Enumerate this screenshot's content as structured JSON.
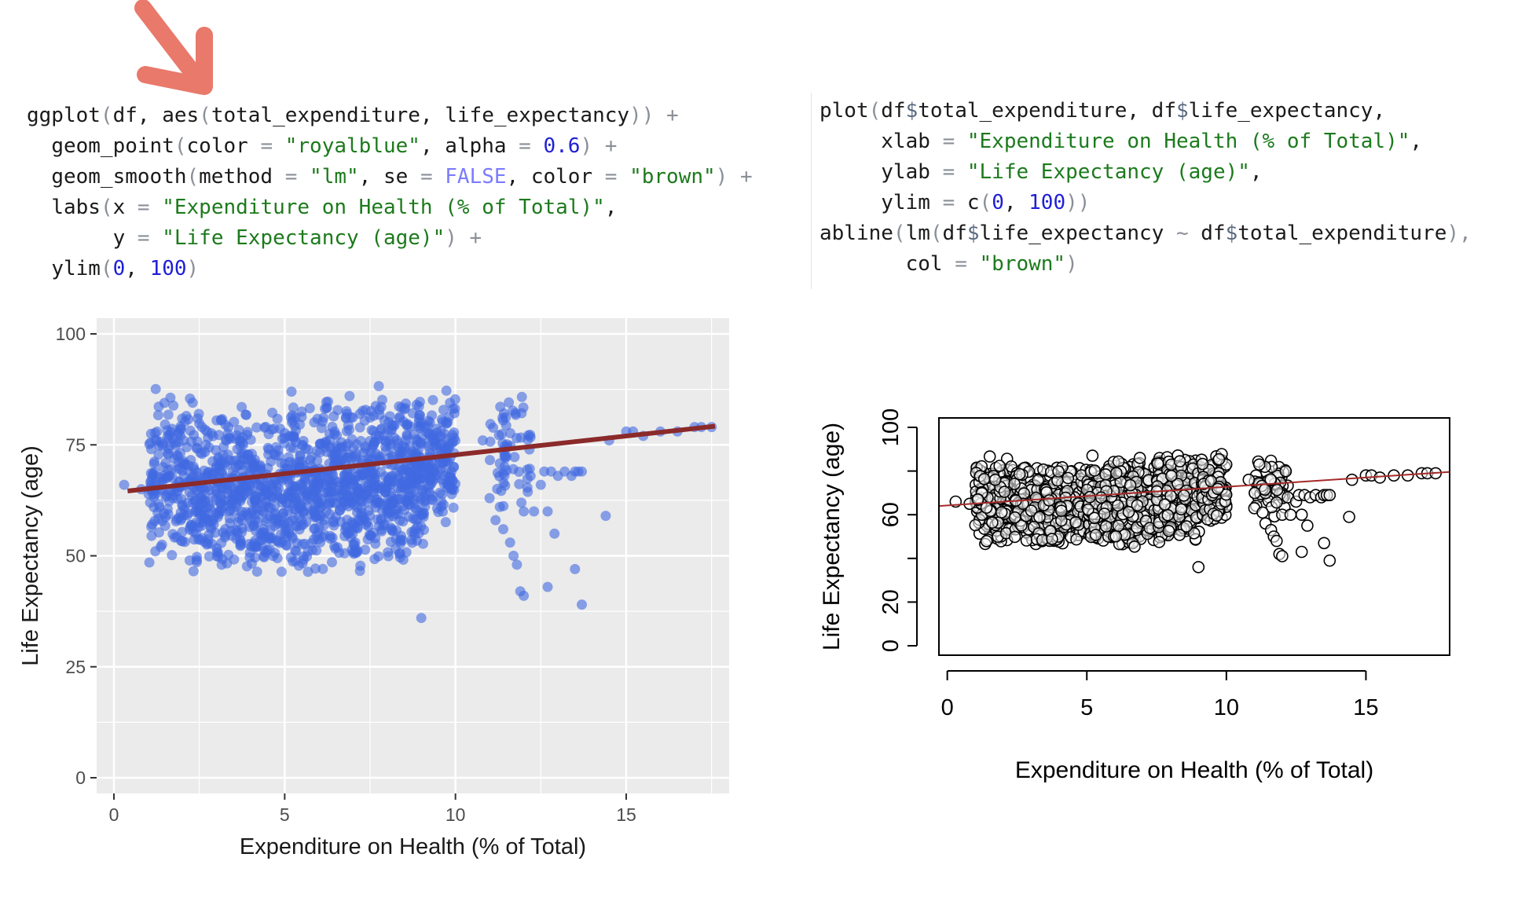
{
  "code": {
    "ggplot": {
      "l1": {
        "fn": "ggplot",
        "open": "(",
        "args": "df, ",
        "fn2": "aes",
        "open2": "(",
        "vars": "total_expenditure, life_expectancy",
        "close": "))",
        "plus": " +"
      },
      "l2": {
        "indent": "  ",
        "fn": "geom_point",
        "open": "(",
        "a1": "color ",
        "eq1": "=",
        "s1": " \"royalblue\"",
        "sep": ", alpha ",
        "eq2": "=",
        "n1": " 0.6",
        "close": ")",
        "plus": " +"
      },
      "l3": {
        "indent": "  ",
        "fn": "geom_smooth",
        "open": "(",
        "a1": "method ",
        "eq1": "=",
        "s1": " \"lm\"",
        "a2": ", se ",
        "eq2": "=",
        "k1": " FALSE",
        "a3": ", color ",
        "eq3": "=",
        "s2": " \"brown\"",
        "close": ")",
        "plus": " +"
      },
      "l4": {
        "indent": "  ",
        "fn": "labs",
        "open": "(",
        "a1": "x ",
        "eq1": "=",
        "s1": " \"Expenditure on Health (% of Total)\"",
        "tail": ","
      },
      "l5": {
        "indent": "       ",
        "a1": "y ",
        "eq1": "=",
        "s1": " \"Life Expectancy (age)\"",
        "close": ")",
        "plus": " +"
      },
      "l6": {
        "indent": "  ",
        "fn": "ylim",
        "open": "(",
        "n1": "0",
        "sep": ", ",
        "n2": "100",
        "close": ")"
      }
    },
    "base": {
      "l1": {
        "fn": "plot",
        "open": "(",
        "v1": "df",
        "d1": "$",
        "v2": "total_expenditure, df",
        "d2": "$",
        "v3": "life_expectancy,"
      },
      "l2": {
        "indent": "     ",
        "a1": "xlab ",
        "eq1": "=",
        "s1": " \"Expenditure on Health (% of Total)\"",
        "tail": ","
      },
      "l3": {
        "indent": "     ",
        "a1": "ylab ",
        "eq1": "=",
        "s1": " \"Life Expectancy (age)\"",
        "tail": ","
      },
      "l4": {
        "indent": "     ",
        "a1": "ylim ",
        "eq1": "=",
        "fn": " c",
        "open": "(",
        "n1": "0",
        "sep": ", ",
        "n2": "100",
        "close": "))"
      },
      "l5": {
        "fn": "abline",
        "open": "(",
        "fn2": "lm",
        "open2": "(",
        "v1": "df",
        "d1": "$",
        "v2": "life_expectancy ",
        "tilde": "~",
        "v3": " df",
        "d2": "$",
        "v4": "total_expenditure",
        "close": "),"
      },
      "l6": {
        "indent": "       ",
        "a1": "col ",
        "eq1": "=",
        "s1": " \"brown\"",
        "close": ")"
      }
    }
  },
  "colors": {
    "arrow": "#e8796b",
    "ggplot_panel": "#ebebeb",
    "ggplot_points": "#4169e1",
    "ggplot_line": "#8b2a2a",
    "base_line": "#a52a2a"
  },
  "chart_data": [
    {
      "type": "scatter",
      "style": "ggplot",
      "xlabel": "Expenditure on Health (% of Total)",
      "ylabel": "Life Expectancy (age)",
      "xlim": [
        0,
        17.6
      ],
      "ylim": [
        0,
        100
      ],
      "x_ticks": [
        "0",
        "5",
        "10",
        "15"
      ],
      "y_ticks": [
        "0",
        "25",
        "50",
        "75",
        "100"
      ],
      "grid": true,
      "point_alpha": 0.6,
      "trend_line": {
        "x": [
          0.4,
          17.6
        ],
        "y": [
          64.6,
          79.2
        ]
      },
      "scatter_bands": [
        {
          "x": [
            1.0,
            2.4
          ],
          "y": [
            46,
            89
          ],
          "n": 190
        },
        {
          "x": [
            2.4,
            5.0
          ],
          "y": [
            45,
            84
          ],
          "n": 440
        },
        {
          "x": [
            5.0,
            7.5
          ],
          "y": [
            45,
            86
          ],
          "n": 460
        },
        {
          "x": [
            7.5,
            9.1
          ],
          "y": [
            47,
            89
          ],
          "n": 320
        },
        {
          "x": [
            9.1,
            10.0
          ],
          "y": [
            55,
            89
          ],
          "n": 140
        },
        {
          "x": [
            11.0,
            12.2
          ],
          "y": [
            57,
            87
          ],
          "n": 60
        }
      ],
      "scatter_points": [
        {
          "x": 0.3,
          "y": 66
        },
        {
          "x": 0.8,
          "y": 65
        },
        {
          "x": 1.1,
          "y": 67
        },
        {
          "x": 10.8,
          "y": 76
        },
        {
          "x": 11.0,
          "y": 63
        },
        {
          "x": 11.3,
          "y": 61
        },
        {
          "x": 11.4,
          "y": 56
        },
        {
          "x": 11.6,
          "y": 53
        },
        {
          "x": 11.7,
          "y": 50
        },
        {
          "x": 11.8,
          "y": 48
        },
        {
          "x": 11.9,
          "y": 42
        },
        {
          "x": 12.0,
          "y": 41
        },
        {
          "x": 12.0,
          "y": 60
        },
        {
          "x": 12.2,
          "y": 68
        },
        {
          "x": 12.3,
          "y": 60
        },
        {
          "x": 12.5,
          "y": 66
        },
        {
          "x": 12.6,
          "y": 69
        },
        {
          "x": 12.7,
          "y": 60
        },
        {
          "x": 12.7,
          "y": 43
        },
        {
          "x": 12.8,
          "y": 69
        },
        {
          "x": 12.9,
          "y": 55
        },
        {
          "x": 13.0,
          "y": 68
        },
        {
          "x": 13.2,
          "y": 69
        },
        {
          "x": 13.4,
          "y": 68
        },
        {
          "x": 13.5,
          "y": 69
        },
        {
          "x": 13.5,
          "y": 47
        },
        {
          "x": 13.6,
          "y": 69
        },
        {
          "x": 13.7,
          "y": 39
        },
        {
          "x": 13.7,
          "y": 69
        },
        {
          "x": 14.4,
          "y": 59
        },
        {
          "x": 14.5,
          "y": 76
        },
        {
          "x": 15.0,
          "y": 78
        },
        {
          "x": 15.2,
          "y": 78
        },
        {
          "x": 15.5,
          "y": 77
        },
        {
          "x": 16.0,
          "y": 78
        },
        {
          "x": 16.5,
          "y": 78
        },
        {
          "x": 17.0,
          "y": 79
        },
        {
          "x": 17.2,
          "y": 79
        },
        {
          "x": 17.5,
          "y": 79
        },
        {
          "x": 9.0,
          "y": 36
        },
        {
          "x": 5.2,
          "y": 87
        },
        {
          "x": 6.9,
          "y": 86
        }
      ]
    },
    {
      "type": "scatter",
      "style": "base",
      "xlabel": "Expenditure on Health (% of Total)",
      "ylabel": "Life Expectancy (age)",
      "xlim": [
        -0.3,
        18.0
      ],
      "ylim": [
        0,
        100
      ],
      "x_ticks": [
        "0",
        "5",
        "10",
        "15"
      ],
      "y_ticks": [
        "0",
        "20",
        "60",
        "100"
      ],
      "grid": false,
      "trend_line": {
        "x": [
          -0.3,
          18.0
        ],
        "y": [
          64.0,
          79.6
        ]
      },
      "scatter_bands": [
        {
          "x": [
            1.0,
            2.4
          ],
          "y": [
            46,
            89
          ],
          "n": 190
        },
        {
          "x": [
            2.4,
            5.0
          ],
          "y": [
            45,
            84
          ],
          "n": 440
        },
        {
          "x": [
            5.0,
            7.5
          ],
          "y": [
            45,
            86
          ],
          "n": 460
        },
        {
          "x": [
            7.5,
            9.1
          ],
          "y": [
            47,
            89
          ],
          "n": 320
        },
        {
          "x": [
            9.1,
            10.0
          ],
          "y": [
            55,
            89
          ],
          "n": 140
        },
        {
          "x": [
            11.0,
            12.2
          ],
          "y": [
            57,
            87
          ],
          "n": 60
        }
      ],
      "scatter_points": [
        {
          "x": 0.3,
          "y": 66
        },
        {
          "x": 0.8,
          "y": 65
        },
        {
          "x": 1.1,
          "y": 67
        },
        {
          "x": 10.8,
          "y": 76
        },
        {
          "x": 11.0,
          "y": 63
        },
        {
          "x": 11.3,
          "y": 61
        },
        {
          "x": 11.4,
          "y": 56
        },
        {
          "x": 11.6,
          "y": 53
        },
        {
          "x": 11.7,
          "y": 50
        },
        {
          "x": 11.8,
          "y": 48
        },
        {
          "x": 11.9,
          "y": 42
        },
        {
          "x": 12.0,
          "y": 41
        },
        {
          "x": 12.0,
          "y": 60
        },
        {
          "x": 12.2,
          "y": 68
        },
        {
          "x": 12.3,
          "y": 60
        },
        {
          "x": 12.5,
          "y": 66
        },
        {
          "x": 12.6,
          "y": 69
        },
        {
          "x": 12.7,
          "y": 60
        },
        {
          "x": 12.7,
          "y": 43
        },
        {
          "x": 12.8,
          "y": 69
        },
        {
          "x": 12.9,
          "y": 55
        },
        {
          "x": 13.0,
          "y": 68
        },
        {
          "x": 13.2,
          "y": 69
        },
        {
          "x": 13.4,
          "y": 68
        },
        {
          "x": 13.5,
          "y": 69
        },
        {
          "x": 13.5,
          "y": 47
        },
        {
          "x": 13.6,
          "y": 69
        },
        {
          "x": 13.7,
          "y": 39
        },
        {
          "x": 13.7,
          "y": 69
        },
        {
          "x": 14.4,
          "y": 59
        },
        {
          "x": 14.5,
          "y": 76
        },
        {
          "x": 15.0,
          "y": 78
        },
        {
          "x": 15.2,
          "y": 78
        },
        {
          "x": 15.5,
          "y": 77
        },
        {
          "x": 16.0,
          "y": 78
        },
        {
          "x": 16.5,
          "y": 78
        },
        {
          "x": 17.0,
          "y": 79
        },
        {
          "x": 17.2,
          "y": 79
        },
        {
          "x": 17.5,
          "y": 79
        },
        {
          "x": 9.0,
          "y": 36
        },
        {
          "x": 5.2,
          "y": 87
        },
        {
          "x": 6.9,
          "y": 86
        }
      ]
    }
  ]
}
